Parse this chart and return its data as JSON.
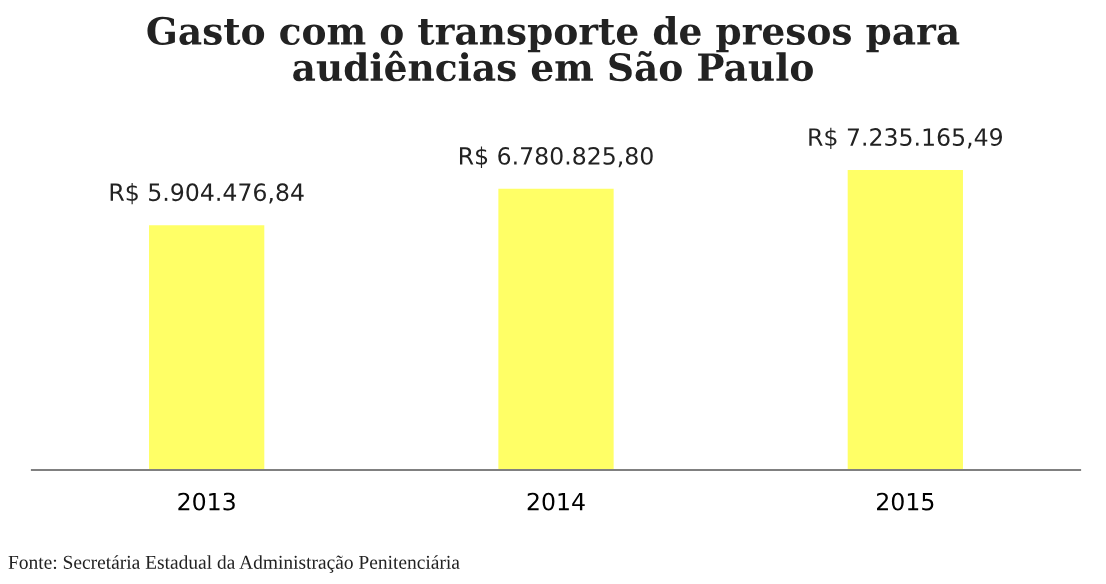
{
  "chart_data": {
    "type": "bar",
    "title": "Gasto com o transporte de presos para\naudiências em São Paulo",
    "categories": [
      "2013",
      "2014",
      "2015"
    ],
    "values": [
      5904476.84,
      6780825.8,
      7235165.49
    ],
    "value_labels": [
      "R$ 5.904.476,84",
      "R$ 6.780.825,80",
      "R$ 7.235.165,49"
    ],
    "color": "#ffff66",
    "grid": false,
    "legend": false,
    "tick_labels": "x",
    "annotations": [
      "Fonte: Secretária Estadual da Administração Penitenciária"
    ]
  }
}
